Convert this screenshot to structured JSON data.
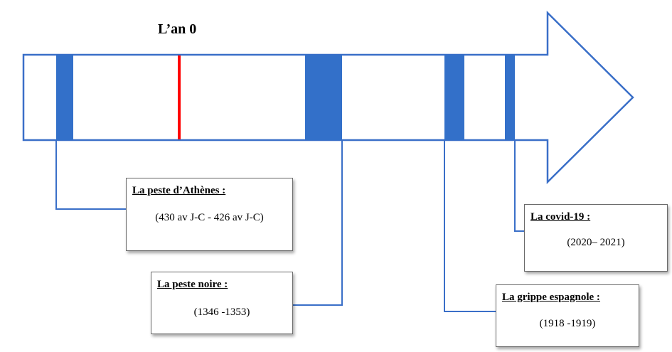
{
  "timeline": {
    "year_zero_label": "L’an 0",
    "colors": {
      "outline": "#3a6fc8",
      "block_fill": "#3370c9",
      "year_zero_marker": "#ff0000"
    }
  },
  "events": {
    "athenes": {
      "title": "La peste d’Athènes :",
      "dates": "(430 av J-C - 426 av J-C)"
    },
    "noire": {
      "title": "La peste noire :",
      "dates": "(1346 -1353)"
    },
    "grippe": {
      "title": "La grippe espagnole :",
      "dates": "(1918 -1919)"
    },
    "covid": {
      "title": "La covid-19 :",
      "dates": "(2020– 2021)"
    }
  }
}
